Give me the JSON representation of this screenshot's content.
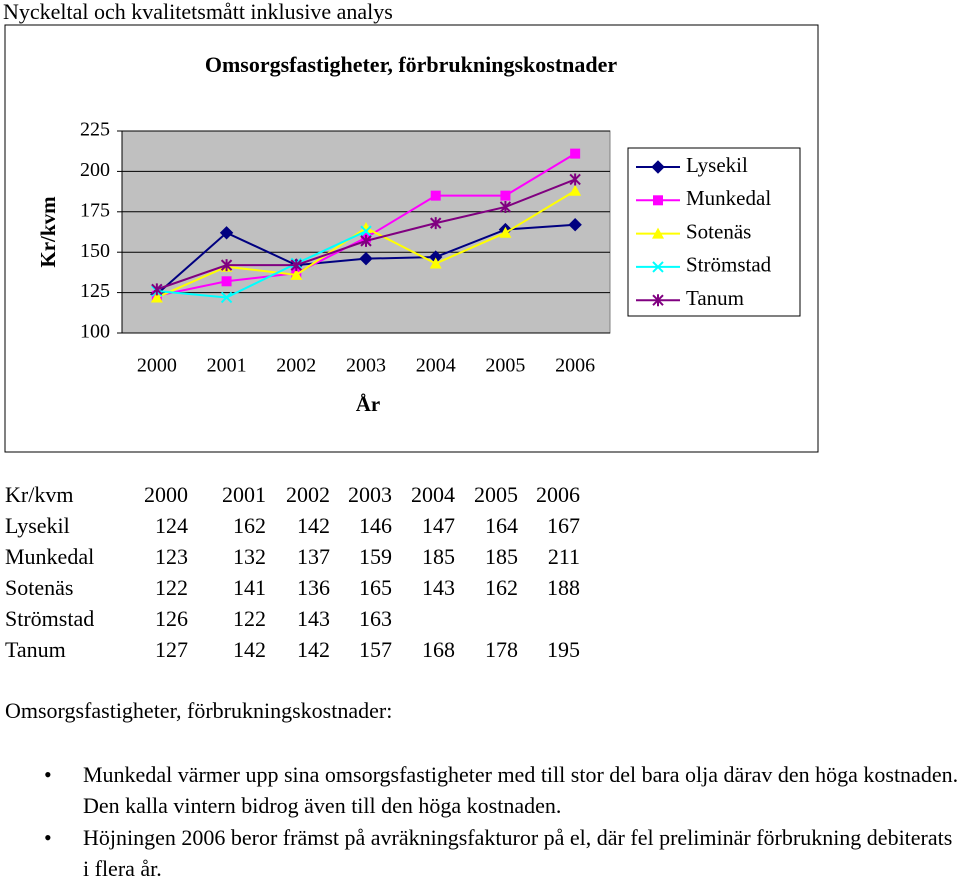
{
  "heading": "Nyckeltal och kvalitetsmått inklusive analys",
  "chart_data": {
    "type": "line",
    "title": "Omsorgsfastigheter, förbrukningskostnader",
    "x_label": "År",
    "y_label": "Kr/kvm",
    "categories": [
      "2000",
      "2001",
      "2002",
      "2003",
      "2004",
      "2005",
      "2006"
    ],
    "ylim": [
      100,
      225
    ],
    "yticks": [
      100,
      125,
      150,
      175,
      200,
      225
    ],
    "grid": true,
    "legend": "right",
    "series": [
      {
        "name": "Lysekil",
        "color": "#000080",
        "marker": "diamond",
        "values": [
          124,
          162,
          142,
          146,
          147,
          164,
          167
        ]
      },
      {
        "name": "Munkedal",
        "color": "#ff00ff",
        "marker": "square",
        "values": [
          123,
          132,
          137,
          159,
          185,
          185,
          211
        ]
      },
      {
        "name": "Sotenäs",
        "color": "#ffff00",
        "marker": "triangle",
        "values": [
          122,
          141,
          136,
          165,
          143,
          162,
          188
        ]
      },
      {
        "name": "Strömstad",
        "color": "#00ffff",
        "marker": "x",
        "values": [
          126,
          122,
          143,
          163,
          null,
          null,
          null
        ]
      },
      {
        "name": "Tanum",
        "color": "#800080",
        "marker": "star",
        "values": [
          127,
          142,
          142,
          157,
          168,
          178,
          195
        ]
      }
    ]
  },
  "table": {
    "header": [
      "Kr/kvm",
      "2000",
      "2001",
      "2002",
      "2003",
      "2004",
      "2005",
      "2006"
    ],
    "rows": [
      [
        "Lysekil",
        "124",
        "162",
        "142",
        "146",
        "147",
        "164",
        "167"
      ],
      [
        "Munkedal",
        "123",
        "132",
        "137",
        "159",
        "185",
        "185",
        "211"
      ],
      [
        "Sotenäs",
        "122",
        "141",
        "136",
        "165",
        "143",
        "162",
        "188"
      ],
      [
        "Strömstad",
        "126",
        "122",
        "143",
        "163"
      ],
      [
        "Tanum",
        "127",
        "142",
        "142",
        "157",
        "168",
        "178",
        "195"
      ]
    ]
  },
  "analysis": {
    "title": "Omsorgsfastigheter, förbrukningskostnader:",
    "bullets": [
      "Munkedal värmer upp sina omsorgsfastigheter med till stor del bara olja därav den höga kostnaden. Den kalla vintern bidrog även till den höga kostnaden.",
      "Höjningen 2006 beror främst på avräkningsfakturor på el, där fel preliminär förbrukning debiterats i flera år."
    ]
  }
}
